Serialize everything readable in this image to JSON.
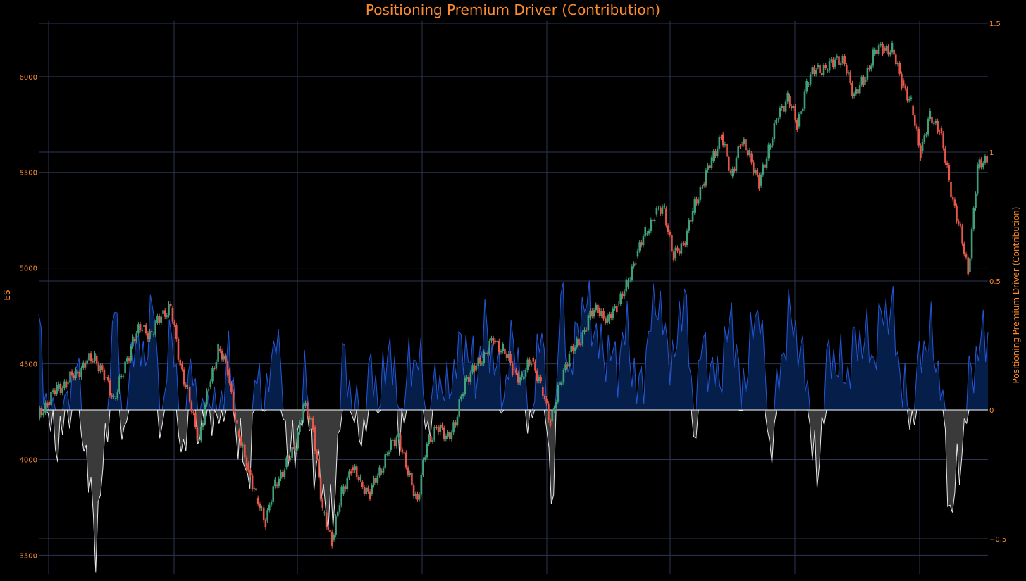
{
  "colors": {
    "background": "#000000",
    "text_accent": "#ff8c2e",
    "grid": "#2b3552",
    "zero_line": "#ffffff",
    "positive_fill": "#061f4a",
    "positive_line": "#2456d6",
    "negative_fill": "#3a3a3a",
    "negative_line": "#e8e8e8",
    "candle_up": "#3fa07a",
    "candle_down": "#e8574a"
  },
  "chart_data": {
    "type": "line",
    "title": "Positioning Premium Driver (Contribution)",
    "left_axis": {
      "label": "ES",
      "range": [
        3450,
        6290
      ],
      "ticks": [
        3500,
        4000,
        4500,
        5000,
        5500,
        6000
      ],
      "tick_labels": [
        "3500",
        "4000",
        "4500",
        "5000",
        "5500",
        "6000"
      ]
    },
    "right_axis": {
      "label": "Positioning Premium Driver (Contribution)",
      "range": [
        -0.5,
        1.5
      ],
      "ticks": [
        -0.5,
        0,
        0.5,
        1,
        1.5
      ],
      "tick_labels": [
        "−0.5",
        "0",
        "0.5",
        "1",
        "1.5"
      ]
    },
    "x_axis": {
      "ticks_shown": false,
      "range": [
        0,
        800
      ]
    },
    "grid": true,
    "legend": "none",
    "series": [
      {
        "type": "candlestick",
        "axis": "left",
        "x": [
          0,
          8,
          16,
          24,
          32,
          40,
          48,
          56,
          64,
          72,
          80,
          88,
          96,
          104,
          112,
          120,
          128,
          136,
          144,
          152,
          160,
          168,
          176,
          184,
          192,
          200,
          208,
          216,
          224,
          232,
          240,
          248,
          256,
          264,
          272,
          280,
          288,
          296,
          304,
          312,
          320,
          328,
          336,
          344,
          352,
          360,
          368,
          376,
          384,
          392,
          400,
          408,
          416,
          424,
          432,
          440,
          448,
          456,
          464,
          472,
          480,
          488,
          496,
          504,
          512,
          520,
          528,
          536,
          544,
          552,
          560,
          568,
          576,
          584,
          592,
          600,
          608,
          616,
          624,
          632,
          640,
          648,
          656,
          664,
          672,
          680,
          688,
          696,
          704,
          712,
          720,
          728,
          736,
          744,
          752,
          760,
          768,
          776,
          784,
          792,
          800
        ],
        "close": [
          4215,
          4300,
          4370,
          4400,
          4450,
          4500,
          4540,
          4430,
          4320,
          4450,
          4630,
          4690,
          4650,
          4760,
          4790,
          4500,
          4300,
          4100,
          4380,
          4580,
          4470,
          4150,
          3980,
          3800,
          3680,
          3870,
          3960,
          4050,
          4280,
          4170,
          3720,
          3580,
          3820,
          3960,
          3880,
          3820,
          3940,
          4050,
          4130,
          3920,
          3790,
          4080,
          4170,
          4120,
          4180,
          4420,
          4470,
          4550,
          4620,
          4580,
          4470,
          4420,
          4530,
          4380,
          4200,
          4390,
          4560,
          4600,
          4740,
          4790,
          4720,
          4810,
          4900,
          5060,
          5180,
          5280,
          5310,
          5050,
          5130,
          5290,
          5440,
          5560,
          5700,
          5480,
          5650,
          5600,
          5430,
          5630,
          5790,
          5900,
          5740,
          5960,
          6050,
          6030,
          6100,
          6060,
          5910,
          5970,
          6120,
          6150,
          6140,
          5980,
          5850,
          5610,
          5790,
          5730,
          5450,
          5230,
          4980,
          5520,
          5580
        ]
      },
      {
        "type": "area",
        "axis": "right",
        "name": "",
        "x": [
          0,
          8,
          16,
          24,
          32,
          40,
          48,
          56,
          64,
          72,
          80,
          88,
          96,
          104,
          112,
          120,
          128,
          136,
          144,
          152,
          160,
          168,
          176,
          184,
          192,
          200,
          208,
          216,
          224,
          232,
          240,
          248,
          256,
          264,
          272,
          280,
          288,
          296,
          304,
          312,
          320,
          328,
          336,
          344,
          352,
          360,
          368,
          376,
          384,
          392,
          400,
          408,
          416,
          424,
          432,
          440,
          448,
          456,
          464,
          472,
          480,
          488,
          496,
          504,
          512,
          520,
          528,
          536,
          544,
          552,
          560,
          568,
          576,
          584,
          592,
          600,
          608,
          616,
          624,
          632,
          640,
          648,
          656,
          664,
          672,
          680,
          688,
          696,
          704,
          712,
          720,
          728,
          736,
          744,
          752,
          760,
          768,
          776,
          784,
          792,
          800
        ],
        "values": [
          0.32,
          -0.03,
          -0.12,
          0.02,
          0.18,
          -0.2,
          -0.5,
          -0.15,
          0.42,
          -0.14,
          0.3,
          0.17,
          0.42,
          -0.1,
          0.38,
          -0.22,
          0.17,
          -0.08,
          0.04,
          -0.05,
          0.22,
          -0.1,
          -0.28,
          0.15,
          0.02,
          0.34,
          -0.1,
          -0.18,
          0.12,
          -0.2,
          -0.32,
          -0.45,
          0.2,
          0.04,
          -0.12,
          0.16,
          0.03,
          0.28,
          -0.1,
          0.16,
          0.22,
          -0.08,
          0.14,
          0.05,
          0.2,
          0.26,
          0.12,
          0.32,
          0.18,
          0.06,
          0.28,
          0.1,
          -0.04,
          0.38,
          -0.42,
          0.46,
          0.12,
          0.38,
          0.4,
          0.24,
          0.22,
          0.18,
          0.32,
          0.05,
          0.2,
          0.46,
          0.28,
          0.18,
          0.5,
          -0.08,
          0.28,
          0.12,
          0.16,
          0.38,
          0.04,
          0.26,
          0.42,
          -0.18,
          0.12,
          0.36,
          0.28,
          0.08,
          -0.3,
          0.18,
          0.2,
          0.12,
          0.26,
          0.28,
          0.2,
          0.4,
          0.36,
          0.08,
          -0.04,
          0.24,
          0.28,
          0.12,
          -0.4,
          -0.22,
          0.1,
          0.24,
          0.3
        ]
      }
    ]
  }
}
